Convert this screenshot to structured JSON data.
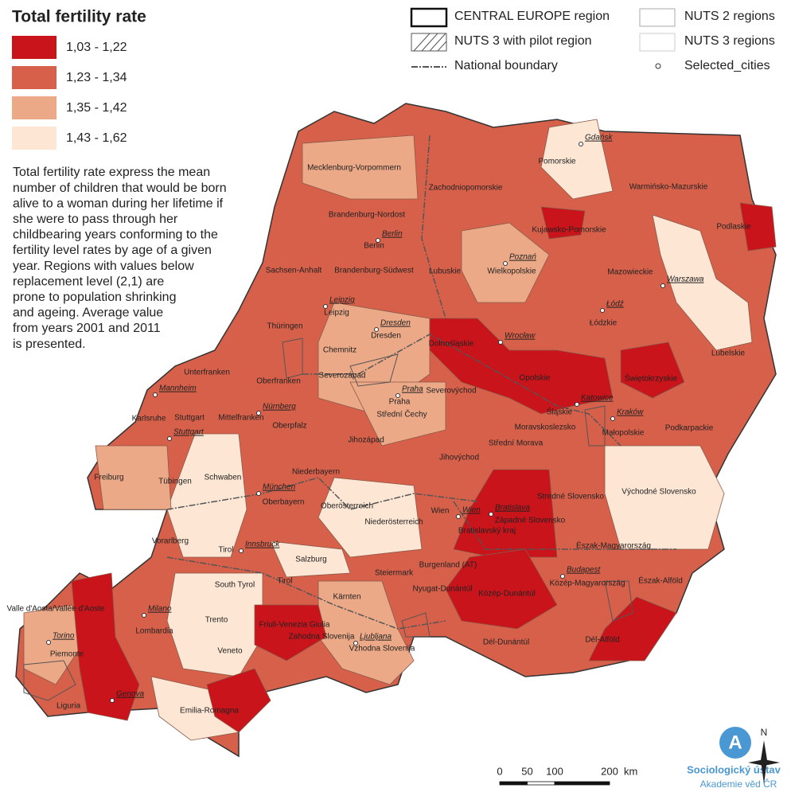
{
  "title": "Total fertility rate",
  "legend": {
    "classes": [
      {
        "label": "1,03 - 1,22",
        "color": "#c8141a"
      },
      {
        "label": "1,23 - 1,34",
        "color": "#d6604a"
      },
      {
        "label": "1,35 - 1,42",
        "color": "#eba987"
      },
      {
        "label": "1,43 - 1,62",
        "color": "#fde6d4"
      }
    ]
  },
  "description": [
    "Total fertility rate express the mean",
    "number of children that would be born",
    "alive to a woman during her lifetime if",
    "she were to pass through her",
    "childbearing years conforming to the",
    "fertility level rates by age of a given",
    "year. Regions with values below",
    "replacement level (2,1) are",
    "prone to population shrinking",
    "and ageing. Average value",
    "from years 2001 and 2011",
    "is presented."
  ],
  "map_legend": {
    "items": [
      "CENTRAL EUROPE region",
      "NUTS 3 with pilot region",
      "National boundary",
      "NUTS 2 regions",
      "NUTS 3 regions",
      "Selected_cities"
    ]
  },
  "regions": [
    "Mecklenburg-Vorpommern",
    "Zachodniopomorskie",
    "Pomorskie",
    "Warmińsko-Mazurskie",
    "Podlaskie",
    "Kujawsko-Pomorskie",
    "Brandenburg-Nordost",
    "Berlin",
    "Wielkopolskie",
    "Mazowieckie",
    "Sachsen-Anhalt",
    "Brandenburg-Südwest",
    "Lubuskie",
    "Leipzig",
    "Łódzkie",
    "Thüringen",
    "Dresden",
    "Dolnośląskie",
    "Chemnitz",
    "Lubelskie",
    "Severozápad",
    "Oberfranken",
    "Unterfranken",
    "Opolskie",
    "Świętokrzyskie",
    "Praha",
    "Severovýchod",
    "Karlsruhe",
    "Stuttgart",
    "Mittelfranken",
    "Oberpfalz",
    "Śląskie",
    "Małopolskie",
    "Střední Čechy",
    "Podkarpackie",
    "Moravskoslezsko",
    "Jihozápad",
    "Střední Morava",
    "Jihovýchod",
    "Freiburg",
    "Tübingen",
    "Schwaben",
    "Niederbayern",
    "Oberbayern",
    "Stredné Slovensko",
    "Východné Slovensko",
    "Oberösterreich",
    "Niederösterreich",
    "Wien",
    "Západné Slovensko",
    "Bratislavský kraj",
    "Vorarlberg",
    "Tirol",
    "Észak-Magyarország",
    "Salzburg",
    "Burgenland (AT)",
    "Steiermark",
    "South Tyrol",
    "Tirol",
    "Közép-Magyarország",
    "Észak-Alföld",
    "Nyugat-Dunántúl",
    "Közép-Dunántúl",
    "Kärnten",
    "Valle d'Aosta/Vallée d'Aoste",
    "Trento",
    "Lombardia",
    "Friuli-Venezia Giulia",
    "Zahodna Slovenija",
    "Dél-Alföld",
    "Dél-Dunántúl",
    "Piemonte",
    "Veneto",
    "Vzhodna Slovenija",
    "Liguria",
    "Emilia-Romagna"
  ],
  "cities": [
    "Gdańsk",
    "Poznań",
    "Berlin",
    "Warszawa",
    "Łódź",
    "Leipzig",
    "Dresden",
    "Wrocław",
    "Praha",
    "Katowice",
    "Kraków",
    "Mannheim",
    "Nürnberg",
    "Stuttgart",
    "München",
    "Wien",
    "Bratislava",
    "Innsbruck",
    "Budapest",
    "Milano",
    "Torino",
    "Genova",
    "Ljubljana"
  ],
  "scale_bar": {
    "ticks": [
      0,
      50,
      100,
      200
    ],
    "unit": "km"
  },
  "north": "N",
  "logo": {
    "name": "Sociologický ústav",
    "subtitle": "Akademie věd ČR"
  }
}
